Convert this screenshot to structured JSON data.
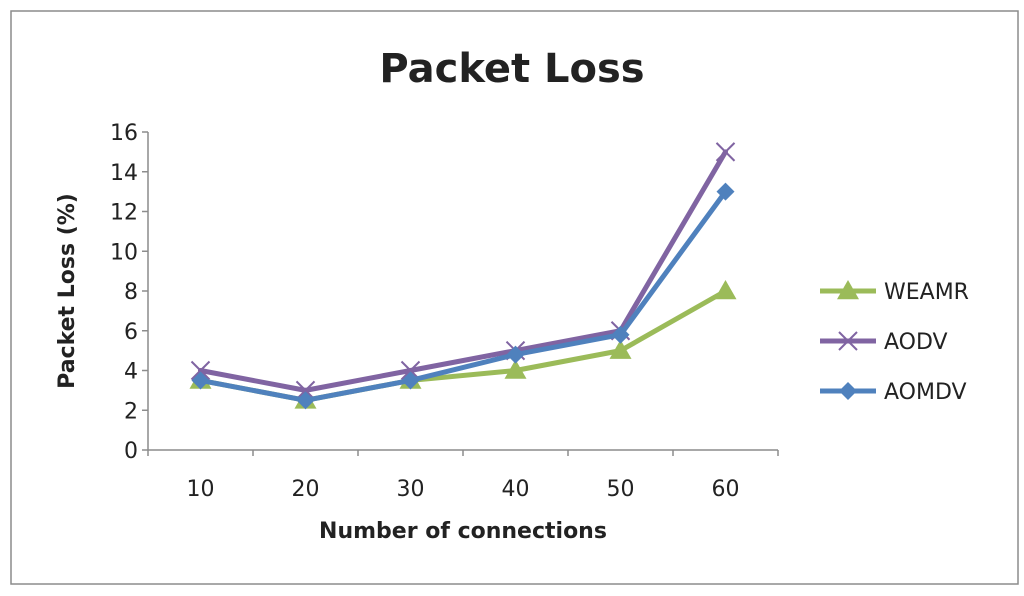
{
  "chart_data": {
    "type": "line",
    "title": "Packet Loss",
    "xlabel": "Number of connections",
    "ylabel": "Packet Loss (%)",
    "categories": [
      "10",
      "20",
      "30",
      "40",
      "50",
      "60"
    ],
    "ylim": [
      0,
      16
    ],
    "yticks": [
      "0",
      "2",
      "4",
      "6",
      "8",
      "10",
      "12",
      "14",
      "16"
    ],
    "grid": false,
    "legend_position": "right",
    "series": [
      {
        "name": "WEAMR",
        "values": [
          3.5,
          2.5,
          3.5,
          4,
          5,
          8
        ],
        "color": "#9BBB59",
        "marker": "triangle"
      },
      {
        "name": "AODV",
        "values": [
          4,
          3,
          4,
          5,
          6,
          15
        ],
        "color": "#8064A2",
        "marker": "x"
      },
      {
        "name": "AOMDV",
        "values": [
          3.5,
          2.5,
          3.5,
          4.8,
          5.8,
          13
        ],
        "color": "#4F81BD",
        "marker": "diamond"
      }
    ]
  }
}
